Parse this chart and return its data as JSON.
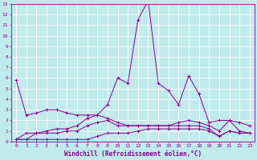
{
  "xlabel": "Windchill (Refroidissement éolien,°C)",
  "xlim": [
    -0.5,
    23.5
  ],
  "ylim": [
    0,
    13
  ],
  "xticks": [
    0,
    1,
    2,
    3,
    4,
    5,
    6,
    7,
    8,
    9,
    10,
    11,
    12,
    13,
    14,
    15,
    16,
    17,
    18,
    19,
    20,
    21,
    22,
    23
  ],
  "yticks": [
    0,
    1,
    2,
    3,
    4,
    5,
    6,
    7,
    8,
    9,
    10,
    11,
    12,
    13
  ],
  "bg_color": "#c0eaec",
  "line_color": "#880088",
  "grid_color": "#ffffff",
  "series": [
    [
      5.8,
      2.5,
      2.7,
      3.0,
      3.0,
      2.7,
      2.5,
      2.5,
      2.5,
      3.5,
      6.0,
      5.5,
      11.5,
      13.3,
      5.5,
      4.8,
      3.5,
      6.2,
      4.5,
      1.8,
      2.0,
      2.0,
      1.0,
      0.8
    ],
    [
      0.2,
      0.2,
      0.8,
      1.0,
      1.2,
      1.2,
      1.5,
      2.2,
      2.5,
      2.2,
      1.8,
      1.5,
      1.5,
      1.5,
      1.5,
      1.5,
      1.8,
      2.0,
      1.8,
      1.5,
      1.0,
      2.0,
      1.8,
      1.5
    ],
    [
      0.2,
      0.8,
      0.8,
      0.8,
      0.8,
      1.0,
      1.0,
      1.5,
      1.8,
      2.0,
      1.5,
      1.5,
      1.5,
      1.5,
      1.5,
      1.5,
      1.5,
      1.5,
      1.5,
      1.2,
      0.5,
      1.0,
      0.8,
      0.8
    ],
    [
      0.2,
      0.2,
      0.2,
      0.2,
      0.2,
      0.2,
      0.2,
      0.2,
      0.5,
      0.8,
      0.8,
      0.8,
      1.0,
      1.2,
      1.2,
      1.2,
      1.2,
      1.2,
      1.2,
      1.0,
      0.5,
      1.0,
      0.8,
      0.8
    ]
  ]
}
